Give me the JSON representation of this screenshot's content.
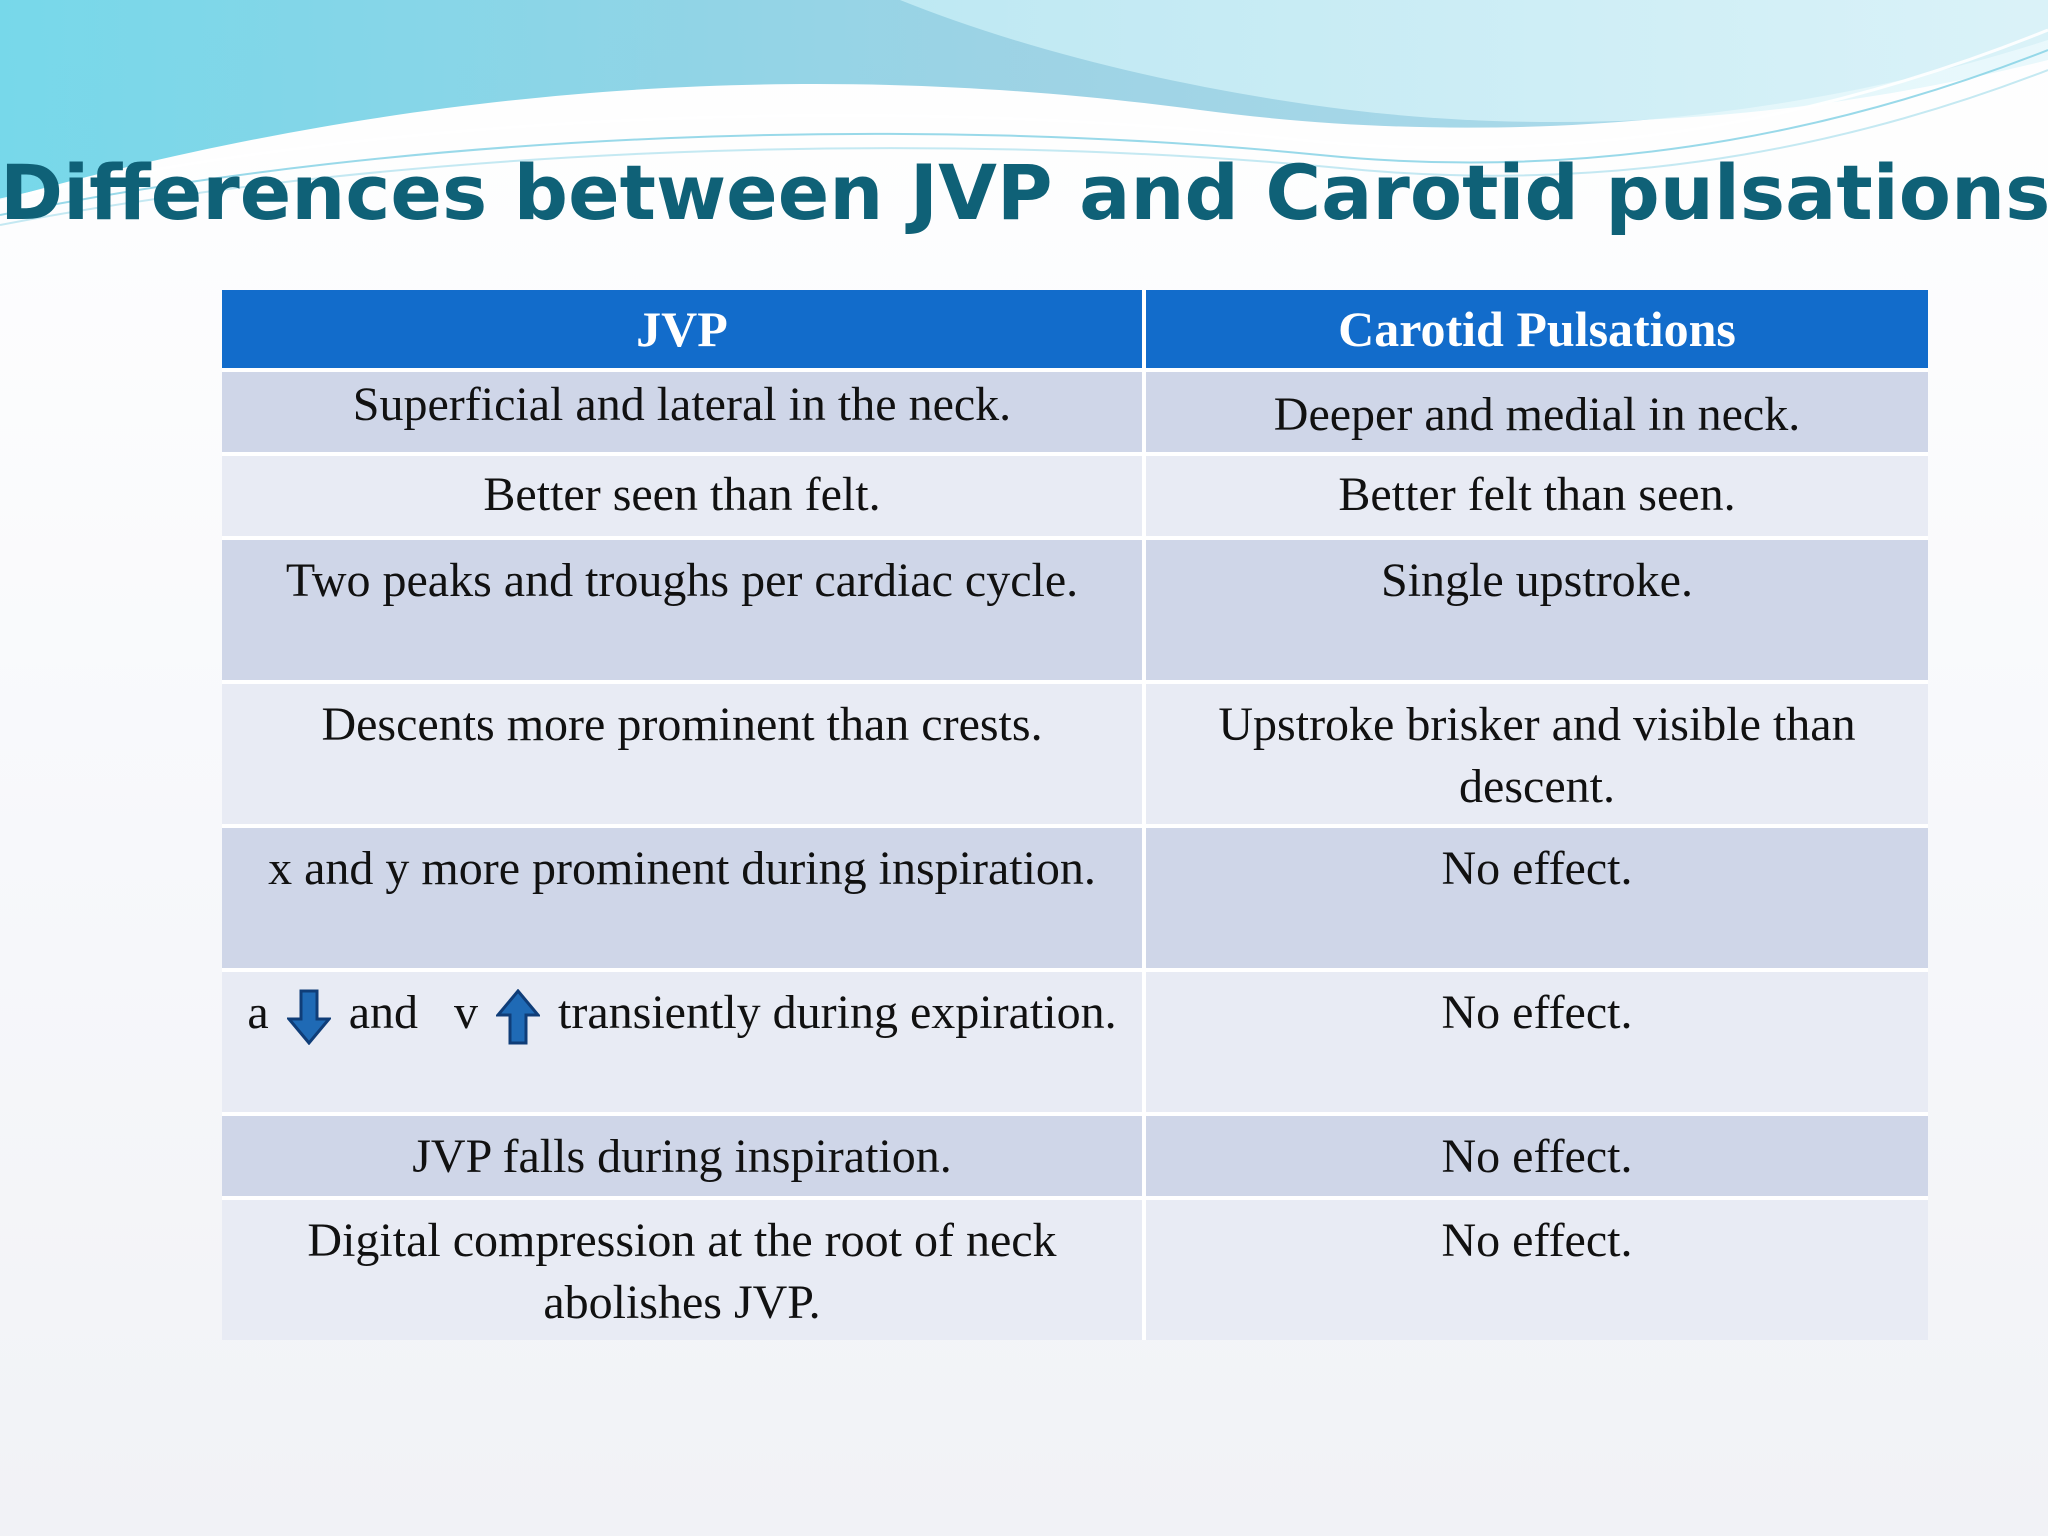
{
  "slide": {
    "title": "Differences between JVP and Carotid pulsations"
  },
  "colors": {
    "title": "#0f6177",
    "header_bg": "#126ccb",
    "row_dark": "#cfd6e8",
    "row_light": "#e8ebf4",
    "arrow_fill": "#1f6ab5",
    "arrow_stroke": "#0f3d78"
  },
  "table": {
    "headers": [
      "JVP",
      "Carotid Pulsations"
    ],
    "rows": [
      [
        "Superficial and lateral in the neck.",
        "Deeper and medial in neck."
      ],
      [
        "Better seen than felt.",
        "Better felt than seen."
      ],
      [
        "Two peaks and troughs per cardiac cycle.",
        "Single upstroke."
      ],
      [
        "Descents more prominent than crests.",
        "Upstroke brisker and visible than descent."
      ],
      [
        "x and y more prominent during inspiration.",
        "No effect."
      ],
      [
        "a and v transiently during expiration.",
        "No effect."
      ],
      [
        "JVP falls during inspiration.",
        "No effect."
      ],
      [
        "Digital compression at the root of neck abolishes JVP.",
        "No effect."
      ]
    ],
    "row6_parts": {
      "a": "a",
      "and": "and",
      "v": "v",
      "rest": "transiently during expiration.",
      "a_arrow": "down-arrow-icon",
      "v_arrow": "up-arrow-icon"
    }
  }
}
